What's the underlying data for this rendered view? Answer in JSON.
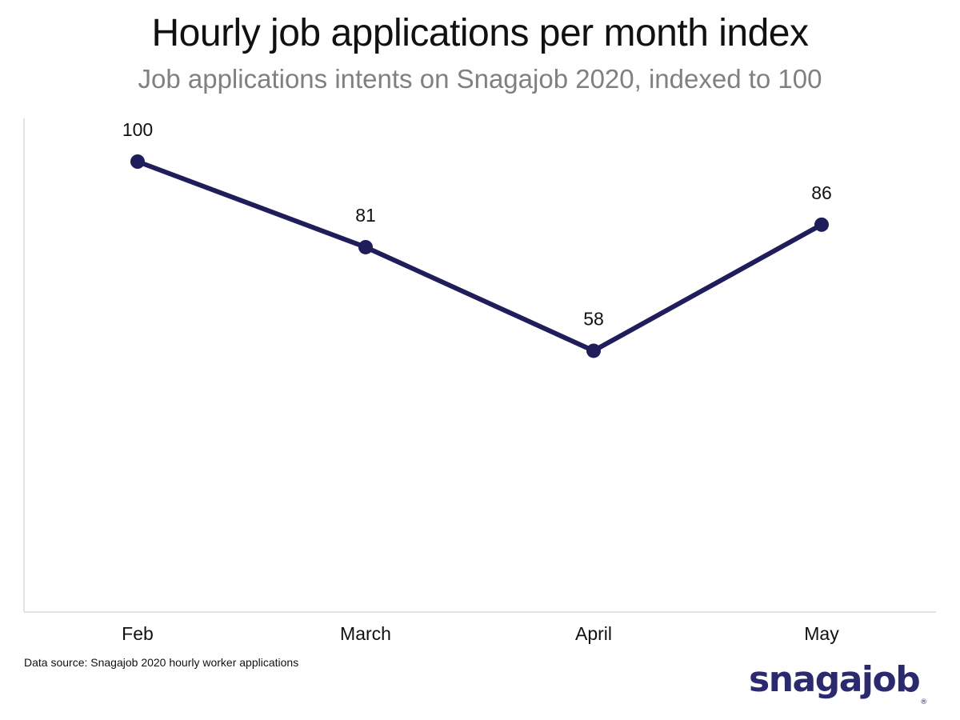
{
  "title": "Hourly job applications per month index",
  "subtitle": "Job applications intents on Snagajob 2020, indexed to 100",
  "source": "Data source: Snagajob 2020 hourly worker applications",
  "logo": {
    "text": "snagajob",
    "mark": "®"
  },
  "colors": {
    "line": "#1f1d5a",
    "axis": "#d9d9d9",
    "logo": "#2b2a6e"
  },
  "chart_data": {
    "type": "line",
    "title": "Hourly job applications per month index",
    "subtitle": "Job applications intents on Snagajob 2020, indexed to 100",
    "categories": [
      "Feb",
      "March",
      "April",
      "May"
    ],
    "series": [
      {
        "values": [
          100,
          81,
          58,
          86
        ],
        "data_labels": [
          "100",
          "81",
          "58",
          "86"
        ]
      }
    ],
    "xlabel": "",
    "ylabel": "",
    "ylim": [
      0,
      110
    ],
    "grid": false,
    "legend": "none",
    "markers": true,
    "data_labels": true
  }
}
